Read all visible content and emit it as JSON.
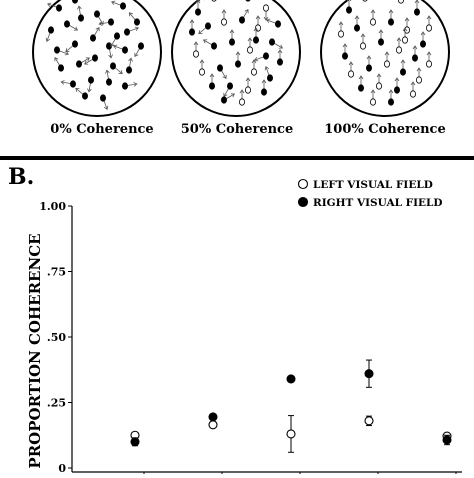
{
  "panel_a": {
    "stimuli": [
      {
        "label": "0% Coherence",
        "coherence": 0,
        "dots": [
          [
            -38,
            -44,
            200,
            true
          ],
          [
            -22,
            -52,
            250,
            true
          ],
          [
            -10,
            -60,
            150,
            true
          ],
          [
            8,
            -58,
            300,
            true
          ],
          [
            26,
            -46,
            200,
            true
          ],
          [
            40,
            -30,
            230,
            true
          ],
          [
            -46,
            -22,
            110,
            true
          ],
          [
            -30,
            -28,
            30,
            true
          ],
          [
            -16,
            -34,
            260,
            true
          ],
          [
            0,
            -38,
            60,
            true
          ],
          [
            14,
            -30,
            170,
            true
          ],
          [
            30,
            -20,
            340,
            true
          ],
          [
            -40,
            -2,
            20,
            true
          ],
          [
            -22,
            -8,
            140,
            true
          ],
          [
            -4,
            -14,
            300,
            true
          ],
          [
            12,
            -6,
            80,
            true
          ],
          [
            28,
            -2,
            200,
            true
          ],
          [
            44,
            -6,
            120,
            true
          ],
          [
            -36,
            16,
            240,
            true
          ],
          [
            -18,
            12,
            330,
            true
          ],
          [
            -2,
            6,
            150,
            true
          ],
          [
            16,
            14,
            40,
            true
          ],
          [
            32,
            18,
            280,
            true
          ],
          [
            -24,
            32,
            190,
            true
          ],
          [
            -6,
            28,
            100,
            true
          ],
          [
            12,
            30,
            260,
            true
          ],
          [
            28,
            34,
            350,
            true
          ],
          [
            -12,
            44,
            220,
            true
          ],
          [
            6,
            46,
            70,
            true
          ],
          [
            20,
            -16,
            120,
            true
          ]
        ]
      },
      {
        "label": "50% Coherence",
        "coherence": 50,
        "dots": [
          [
            -38,
            -40,
            270,
            true
          ],
          [
            -22,
            -54,
            180,
            false
          ],
          [
            -4,
            -58,
            270,
            false
          ],
          [
            12,
            -54,
            270,
            true
          ],
          [
            30,
            -44,
            90,
            false
          ],
          [
            42,
            -28,
            200,
            true
          ],
          [
            -44,
            -20,
            270,
            true
          ],
          [
            -28,
            -26,
            140,
            true
          ],
          [
            -12,
            -30,
            270,
            false
          ],
          [
            6,
            -32,
            300,
            true
          ],
          [
            22,
            -24,
            270,
            false
          ],
          [
            36,
            -10,
            30,
            true
          ],
          [
            -40,
            2,
            270,
            false
          ],
          [
            -22,
            -6,
            210,
            true
          ],
          [
            -4,
            -10,
            270,
            true
          ],
          [
            14,
            -2,
            270,
            false
          ],
          [
            30,
            4,
            160,
            true
          ],
          [
            44,
            10,
            270,
            true
          ],
          [
            -34,
            20,
            270,
            false
          ],
          [
            -16,
            16,
            60,
            true
          ],
          [
            2,
            12,
            270,
            true
          ],
          [
            18,
            20,
            270,
            false
          ],
          [
            34,
            26,
            250,
            true
          ],
          [
            -24,
            34,
            270,
            true
          ],
          [
            -6,
            34,
            120,
            true
          ],
          [
            12,
            38,
            270,
            false
          ],
          [
            28,
            40,
            270,
            true
          ],
          [
            -12,
            48,
            330,
            true
          ],
          [
            6,
            50,
            270,
            false
          ],
          [
            20,
            -12,
            270,
            true
          ]
        ]
      },
      {
        "label": "100% Coherence",
        "coherence": 100,
        "dots": [
          [
            -36,
            -42,
            270,
            true
          ],
          [
            -20,
            -54,
            270,
            false
          ],
          [
            -2,
            -58,
            270,
            true
          ],
          [
            16,
            -52,
            270,
            false
          ],
          [
            32,
            -40,
            270,
            true
          ],
          [
            44,
            -24,
            270,
            false
          ],
          [
            -44,
            -18,
            270,
            false
          ],
          [
            -28,
            -24,
            270,
            true
          ],
          [
            -12,
            -30,
            270,
            false
          ],
          [
            6,
            -30,
            270,
            true
          ],
          [
            22,
            -22,
            270,
            false
          ],
          [
            38,
            -8,
            270,
            true
          ],
          [
            -40,
            4,
            270,
            true
          ],
          [
            -22,
            -6,
            270,
            false
          ],
          [
            -4,
            -10,
            270,
            true
          ],
          [
            14,
            -2,
            270,
            false
          ],
          [
            30,
            6,
            270,
            true
          ],
          [
            44,
            12,
            270,
            false
          ],
          [
            -34,
            22,
            270,
            false
          ],
          [
            -16,
            16,
            270,
            true
          ],
          [
            2,
            12,
            270,
            false
          ],
          [
            18,
            20,
            270,
            true
          ],
          [
            34,
            28,
            270,
            false
          ],
          [
            -24,
            36,
            270,
            true
          ],
          [
            -6,
            34,
            270,
            false
          ],
          [
            12,
            38,
            270,
            true
          ],
          [
            28,
            42,
            270,
            false
          ],
          [
            -12,
            50,
            270,
            false
          ],
          [
            6,
            50,
            270,
            true
          ],
          [
            20,
            -12,
            270,
            false
          ]
        ]
      }
    ]
  },
  "panel_b": {
    "label": "B."
  },
  "chart_data": {
    "type": "scatter",
    "title": "",
    "xlabel": "",
    "ylabel": "PROPORTION COHERENCE",
    "ylim": [
      0,
      1.0
    ],
    "y_ticks": [
      0,
      0.25,
      0.5,
      0.75,
      1.0
    ],
    "y_tick_labels": [
      "0",
      ".25",
      ".50",
      ".75",
      "1.00"
    ],
    "x_positions": [
      1,
      2,
      3,
      4,
      5
    ],
    "legend_position": "top-right",
    "series": [
      {
        "name": "LEFT VISUAL FIELD",
        "marker": "open-circle",
        "values": [
          0.125,
          0.165,
          0.13,
          0.18,
          0.122
        ],
        "errors": [
          0,
          0,
          0.07,
          0.018,
          0
        ]
      },
      {
        "name": "RIGHT VISUAL FIELD",
        "marker": "filled-circle",
        "values": [
          0.1,
          0.195,
          0.34,
          0.36,
          0.107
        ],
        "errors": [
          0.015,
          0,
          0,
          0.052,
          0.018
        ]
      }
    ]
  }
}
